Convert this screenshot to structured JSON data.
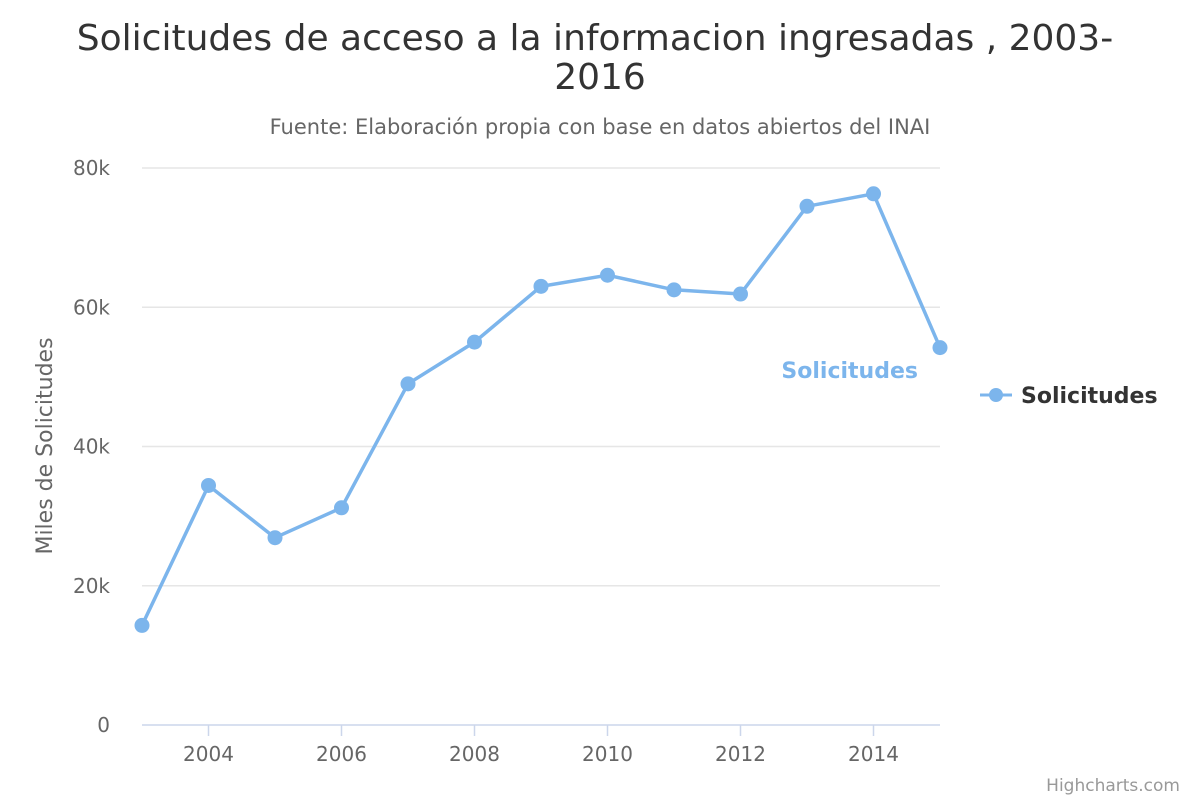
{
  "chart_data": {
    "type": "line",
    "title_line1": "Solicitudes de acceso a la informacion ingresadas , 2003-",
    "title_line2": "2016",
    "subtitle": "Fuente: Elaboración propia con base en datos abiertos del INAI",
    "ylabel": "Miles de Solicitudes",
    "xlabel": "",
    "ylim": [
      0,
      80000
    ],
    "xlim": [
      2003,
      2015
    ],
    "yticks": [
      0,
      20000,
      40000,
      60000,
      80000
    ],
    "ytick_labels": [
      "0",
      "20k",
      "40k",
      "60k",
      "80k"
    ],
    "xticks": [
      2004,
      2006,
      2008,
      2010,
      2012,
      2014
    ],
    "xtick_labels": [
      "2004",
      "2006",
      "2008",
      "2010",
      "2012",
      "2014"
    ],
    "grid": true,
    "legend_position": "right",
    "series": [
      {
        "name": "Solicitudes",
        "color": "#7cb5ec",
        "x": [
          2003,
          2004,
          2005,
          2006,
          2007,
          2008,
          2009,
          2010,
          2011,
          2012,
          2013,
          2014,
          2015
        ],
        "values": [
          14300,
          34400,
          26900,
          31200,
          49000,
          55000,
          63000,
          64600,
          62500,
          61900,
          74500,
          76300,
          54200
        ]
      }
    ],
    "series_label": "Solicitudes",
    "legend_label": "Solicitudes",
    "credits": "Highcharts.com"
  }
}
